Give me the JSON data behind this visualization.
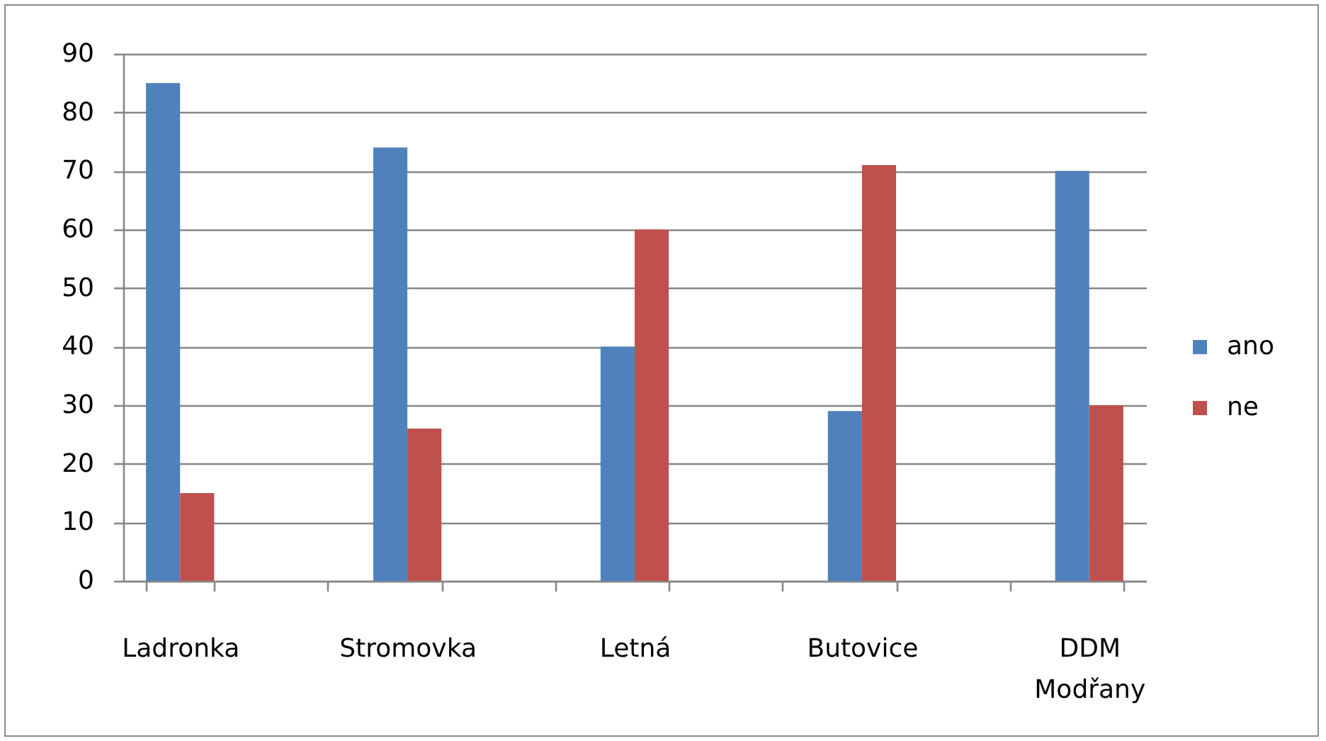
{
  "chart_data": {
    "type": "bar",
    "categories": [
      "Ladronka",
      null,
      "Stromovka",
      null,
      "Letná",
      null,
      "Butovice",
      null,
      "DDM Modřany"
    ],
    "series": [
      {
        "name": "ano",
        "color": "#4f81bd",
        "values": [
          85,
          null,
          74,
          null,
          40,
          null,
          29,
          null,
          70
        ]
      },
      {
        "name": "ne",
        "color": "#c0504d",
        "values": [
          15,
          null,
          26,
          null,
          60,
          null,
          71,
          null,
          30
        ]
      }
    ],
    "ylim": [
      0,
      90
    ],
    "yticks": [
      0,
      10,
      20,
      30,
      40,
      50,
      60,
      70,
      80,
      90
    ],
    "grid": "y",
    "legend": "right"
  }
}
